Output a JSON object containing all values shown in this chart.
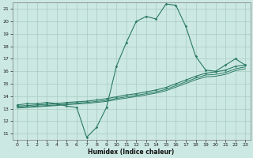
{
  "xlabel": "Humidex (Indice chaleur)",
  "bg_color": "#cce8e2",
  "grid_color": "#a8ccbf",
  "line_color": "#2a7a65",
  "xlim": [
    -0.5,
    23.5
  ],
  "ylim": [
    10.5,
    21.5
  ],
  "xticks": [
    0,
    1,
    2,
    3,
    4,
    5,
    6,
    7,
    8,
    9,
    10,
    11,
    12,
    13,
    14,
    15,
    16,
    17,
    18,
    19,
    20,
    21,
    22,
    23
  ],
  "yticks": [
    11,
    12,
    13,
    14,
    15,
    16,
    17,
    18,
    19,
    20,
    21
  ],
  "line1_x": [
    0,
    1,
    2,
    3,
    4,
    5,
    6,
    7,
    8,
    9,
    10,
    11,
    12,
    13,
    14,
    15,
    16,
    17,
    18,
    19,
    20,
    21,
    22,
    23
  ],
  "line1_y": [
    13.3,
    13.4,
    13.4,
    13.5,
    13.4,
    13.2,
    13.1,
    10.7,
    11.5,
    13.1,
    16.4,
    18.3,
    20.0,
    20.4,
    20.2,
    21.4,
    21.3,
    19.6,
    17.2,
    16.1,
    16.0,
    16.5,
    17.0,
    16.5
  ],
  "line2_x": [
    0,
    1,
    2,
    3,
    4,
    5,
    6,
    7,
    8,
    9,
    10,
    11,
    12,
    13,
    14,
    15,
    16,
    17,
    18,
    19,
    20,
    21,
    22,
    23
  ],
  "line2_y": [
    13.2,
    13.25,
    13.3,
    13.35,
    13.4,
    13.5,
    13.55,
    13.6,
    13.7,
    13.8,
    13.95,
    14.1,
    14.2,
    14.35,
    14.5,
    14.7,
    15.0,
    15.3,
    15.6,
    15.85,
    15.95,
    16.1,
    16.4,
    16.5
  ],
  "line3_x": [
    0,
    1,
    2,
    3,
    4,
    5,
    6,
    7,
    8,
    9,
    10,
    11,
    12,
    13,
    14,
    15,
    16,
    17,
    18,
    19,
    20,
    21,
    22,
    23
  ],
  "line3_y": [
    13.1,
    13.15,
    13.2,
    13.25,
    13.3,
    13.38,
    13.44,
    13.5,
    13.58,
    13.66,
    13.82,
    13.95,
    14.07,
    14.2,
    14.35,
    14.55,
    14.85,
    15.15,
    15.45,
    15.7,
    15.75,
    15.9,
    16.2,
    16.35
  ],
  "line4_x": [
    0,
    1,
    2,
    3,
    4,
    5,
    6,
    7,
    8,
    9,
    10,
    11,
    12,
    13,
    14,
    15,
    16,
    17,
    18,
    19,
    20,
    21,
    22,
    23
  ],
  "line4_y": [
    13.05,
    13.1,
    13.15,
    13.2,
    13.25,
    13.32,
    13.37,
    13.42,
    13.5,
    13.58,
    13.73,
    13.85,
    13.97,
    14.1,
    14.25,
    14.44,
    14.73,
    15.02,
    15.32,
    15.55,
    15.6,
    15.75,
    16.05,
    16.2
  ]
}
